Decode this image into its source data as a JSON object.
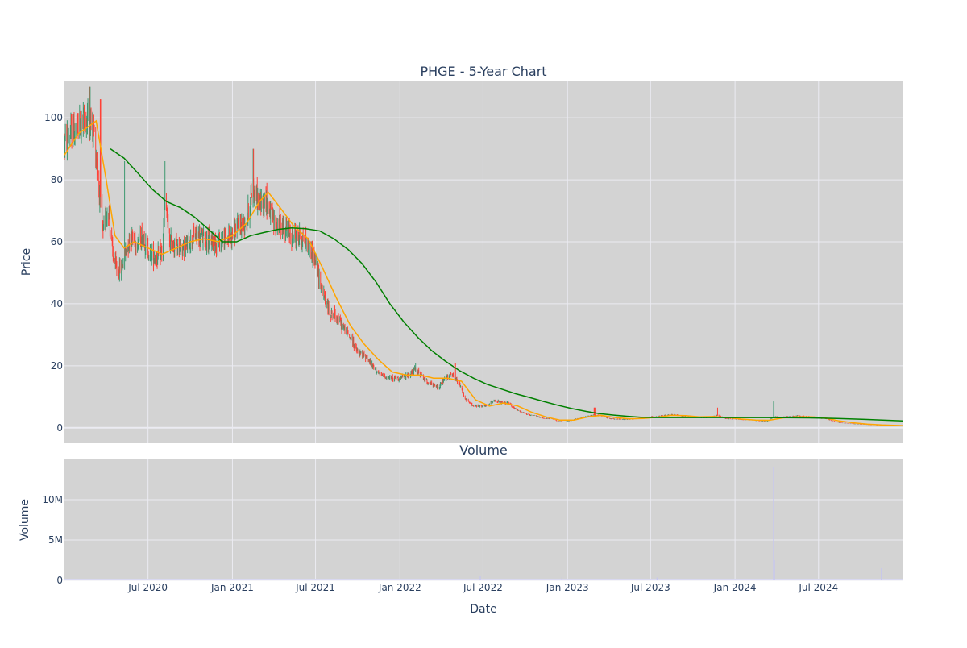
{
  "colors": {
    "plot_bg": "#d3d3d3",
    "grid": "#ebebf2",
    "increasing": "#3d9970",
    "decreasing": "#ff4136",
    "ma_short": "orange",
    "ma_long": "green",
    "volume": "#c6c6ef",
    "text": "#2a3f5f"
  },
  "chart_data": [
    {
      "type": "candlestick",
      "title": "PHGE - 5-Year Chart",
      "ylabel": "Price",
      "xlim": [
        "2020-01-01",
        "2024-12-31"
      ],
      "ylim": [
        -5,
        112
      ],
      "yticks": [
        0,
        20,
        40,
        60,
        80,
        100
      ],
      "grid": true,
      "price_path": [
        [
          "2020-01-02",
          92
        ],
        [
          "2020-01-15",
          95
        ],
        [
          "2020-02-01",
          97
        ],
        [
          "2020-02-20",
          100
        ],
        [
          "2020-03-05",
          96
        ],
        [
          "2020-03-15",
          80
        ],
        [
          "2020-03-25",
          62
        ],
        [
          "2020-04-05",
          72
        ],
        [
          "2020-04-15",
          56
        ],
        [
          "2020-04-25",
          50
        ],
        [
          "2020-05-05",
          52
        ],
        [
          "2020-05-15",
          58
        ],
        [
          "2020-05-25",
          62
        ],
        [
          "2020-06-05",
          60
        ],
        [
          "2020-06-20",
          62
        ],
        [
          "2020-07-05",
          56
        ],
        [
          "2020-07-20",
          55
        ],
        [
          "2020-08-01",
          57
        ],
        [
          "2020-08-08",
          75
        ],
        [
          "2020-08-15",
          60
        ],
        [
          "2020-09-01",
          59
        ],
        [
          "2020-09-20",
          58
        ],
        [
          "2020-10-10",
          62
        ],
        [
          "2020-11-01",
          61
        ],
        [
          "2020-12-01",
          60
        ],
        [
          "2020-12-20",
          61
        ],
        [
          "2021-01-10",
          64
        ],
        [
          "2021-02-01",
          67
        ],
        [
          "2021-02-15",
          78
        ],
        [
          "2021-03-01",
          72
        ],
        [
          "2021-03-15",
          74
        ],
        [
          "2021-04-01",
          66
        ],
        [
          "2021-04-20",
          65
        ],
        [
          "2021-05-10",
          62
        ],
        [
          "2021-05-25",
          62
        ],
        [
          "2021-06-10",
          60
        ],
        [
          "2021-06-25",
          56
        ],
        [
          "2021-07-10",
          48
        ],
        [
          "2021-07-20",
          42
        ],
        [
          "2021-08-01",
          37
        ],
        [
          "2021-08-15",
          36
        ],
        [
          "2021-09-01",
          32
        ],
        [
          "2021-09-20",
          28
        ],
        [
          "2021-10-01",
          24
        ],
        [
          "2021-10-20",
          23
        ],
        [
          "2021-11-01",
          20
        ],
        [
          "2021-11-20",
          17
        ],
        [
          "2021-12-10",
          16
        ],
        [
          "2022-01-01",
          16
        ],
        [
          "2022-01-20",
          17
        ],
        [
          "2022-02-05",
          19
        ],
        [
          "2022-02-20",
          16
        ],
        [
          "2022-03-10",
          14
        ],
        [
          "2022-03-25",
          13
        ],
        [
          "2022-04-10",
          16
        ],
        [
          "2022-04-25",
          17
        ],
        [
          "2022-05-10",
          14
        ],
        [
          "2022-05-25",
          9
        ],
        [
          "2022-06-10",
          7
        ],
        [
          "2022-06-25",
          7
        ],
        [
          "2022-07-10",
          7
        ],
        [
          "2022-07-25",
          9
        ],
        [
          "2022-08-10",
          8
        ],
        [
          "2022-08-25",
          8
        ],
        [
          "2022-09-10",
          6
        ],
        [
          "2022-09-25",
          5
        ],
        [
          "2022-10-10",
          4
        ],
        [
          "2022-10-25",
          3.8
        ],
        [
          "2022-11-10",
          3
        ],
        [
          "2022-11-25",
          3
        ],
        [
          "2022-12-10",
          2.2
        ],
        [
          "2022-12-25",
          1.8
        ],
        [
          "2023-01-10",
          2.5
        ],
        [
          "2023-01-25",
          3
        ],
        [
          "2023-02-10",
          3.5
        ],
        [
          "2023-02-25",
          4
        ],
        [
          "2023-03-15",
          4
        ],
        [
          "2023-04-01",
          3
        ],
        [
          "2023-04-20",
          2.8
        ],
        [
          "2023-05-10",
          2.7
        ],
        [
          "2023-06-01",
          3
        ],
        [
          "2023-06-20",
          3.4
        ],
        [
          "2023-07-10",
          3.5
        ],
        [
          "2023-08-01",
          4
        ],
        [
          "2023-08-20",
          4.2
        ],
        [
          "2023-09-10",
          3.8
        ],
        [
          "2023-10-01",
          3.6
        ],
        [
          "2023-10-20",
          3.3
        ],
        [
          "2023-11-10",
          3.4
        ],
        [
          "2023-11-25",
          4
        ],
        [
          "2023-12-10",
          3
        ],
        [
          "2024-01-01",
          2.8
        ],
        [
          "2024-01-20",
          2.6
        ],
        [
          "2024-02-10",
          2.5
        ],
        [
          "2024-02-25",
          2.2
        ],
        [
          "2024-03-10",
          2.1
        ],
        [
          "2024-03-25",
          3.5
        ],
        [
          "2024-04-10",
          3.4
        ],
        [
          "2024-05-01",
          3.6
        ],
        [
          "2024-05-20",
          3.8
        ],
        [
          "2024-06-10",
          3.5
        ],
        [
          "2024-07-01",
          3.3
        ],
        [
          "2024-07-20",
          2.8
        ],
        [
          "2024-08-10",
          1.8
        ],
        [
          "2024-09-01",
          1.4
        ],
        [
          "2024-10-01",
          1.1
        ],
        [
          "2024-11-01",
          0.9
        ],
        [
          "2024-12-01",
          0.7
        ],
        [
          "2024-12-30",
          0.6
        ]
      ],
      "spikes": [
        [
          "2020-02-25",
          110
        ],
        [
          "2020-03-20",
          106
        ],
        [
          "2020-05-10",
          86
        ],
        [
          "2020-08-08",
          86
        ],
        [
          "2021-02-15",
          90
        ],
        [
          "2022-02-05",
          21
        ],
        [
          "2022-05-01",
          21
        ],
        [
          "2023-03-01",
          6.5
        ],
        [
          "2023-11-25",
          6.5
        ],
        [
          "2024-03-25",
          8.5
        ]
      ],
      "series": [
        {
          "kind": "moving-average-short",
          "color": "orange",
          "points": [
            [
              "2020-01-01",
              88
            ],
            [
              "2020-02-01",
              95
            ],
            [
              "2020-03-01",
              98
            ],
            [
              "2020-03-10",
              99
            ],
            [
              "2020-04-01",
              80
            ],
            [
              "2020-04-20",
              62
            ],
            [
              "2020-05-10",
              58
            ],
            [
              "2020-06-01",
              60
            ],
            [
              "2020-07-01",
              58
            ],
            [
              "2020-08-01",
              56
            ],
            [
              "2020-09-01",
              58
            ],
            [
              "2020-10-01",
              60
            ],
            [
              "2020-11-01",
              61
            ],
            [
              "2020-12-01",
              60
            ],
            [
              "2021-01-01",
              62
            ],
            [
              "2021-02-01",
              66
            ],
            [
              "2021-03-01",
              73
            ],
            [
              "2021-03-20",
              76
            ],
            [
              "2021-04-15",
              71
            ],
            [
              "2021-05-15",
              65
            ],
            [
              "2021-06-15",
              61
            ],
            [
              "2021-07-15",
              52
            ],
            [
              "2021-08-15",
              42
            ],
            [
              "2021-09-15",
              33
            ],
            [
              "2021-10-15",
              27
            ],
            [
              "2021-11-15",
              22
            ],
            [
              "2021-12-15",
              18
            ],
            [
              "2022-01-15",
              17
            ],
            [
              "2022-02-15",
              17
            ],
            [
              "2022-03-15",
              16
            ],
            [
              "2022-04-15",
              16
            ],
            [
              "2022-05-15",
              15
            ],
            [
              "2022-06-15",
              9
            ],
            [
              "2022-07-15",
              7
            ],
            [
              "2022-08-15",
              8
            ],
            [
              "2022-09-15",
              7
            ],
            [
              "2022-10-15",
              5
            ],
            [
              "2022-11-15",
              3.5
            ],
            [
              "2022-12-15",
              2.5
            ],
            [
              "2023-01-15",
              2.5
            ],
            [
              "2023-02-15",
              3.5
            ],
            [
              "2023-03-15",
              4
            ],
            [
              "2023-04-15",
              3.3
            ],
            [
              "2023-05-15",
              2.9
            ],
            [
              "2023-06-15",
              3
            ],
            [
              "2023-07-15",
              3.4
            ],
            [
              "2023-08-15",
              4
            ],
            [
              "2023-09-15",
              3.9
            ],
            [
              "2023-10-15",
              3.5
            ],
            [
              "2023-11-15",
              3.6
            ],
            [
              "2023-12-15",
              3.3
            ],
            [
              "2024-01-15",
              2.8
            ],
            [
              "2024-02-15",
              2.5
            ],
            [
              "2024-03-15",
              2.4
            ],
            [
              "2024-04-15",
              3.2
            ],
            [
              "2024-05-15",
              3.5
            ],
            [
              "2024-06-15",
              3.5
            ],
            [
              "2024-07-15",
              3.2
            ],
            [
              "2024-08-15",
              2.2
            ],
            [
              "2024-09-15",
              1.6
            ],
            [
              "2024-10-15",
              1.2
            ],
            [
              "2024-11-15",
              0.9
            ],
            [
              "2024-12-31",
              0.7
            ]
          ]
        },
        {
          "kind": "moving-average-long",
          "color": "green",
          "points": [
            [
              "2020-04-10",
              90
            ],
            [
              "2020-05-10",
              87
            ],
            [
              "2020-06-10",
              82
            ],
            [
              "2020-07-10",
              77
            ],
            [
              "2020-08-10",
              73
            ],
            [
              "2020-09-10",
              71
            ],
            [
              "2020-10-10",
              68
            ],
            [
              "2020-11-10",
              64
            ],
            [
              "2020-12-10",
              60
            ],
            [
              "2021-01-10",
              60
            ],
            [
              "2021-02-10",
              62
            ],
            [
              "2021-03-10",
              63
            ],
            [
              "2021-04-10",
              64
            ],
            [
              "2021-05-10",
              64.5
            ],
            [
              "2021-06-10",
              64.2
            ],
            [
              "2021-07-10",
              63.5
            ],
            [
              "2021-08-10",
              61
            ],
            [
              "2021-09-10",
              57.5
            ],
            [
              "2021-10-10",
              53
            ],
            [
              "2021-11-10",
              47
            ],
            [
              "2021-12-10",
              40
            ],
            [
              "2022-01-10",
              34
            ],
            [
              "2022-02-10",
              29
            ],
            [
              "2022-03-10",
              25
            ],
            [
              "2022-04-10",
              21.5
            ],
            [
              "2022-05-10",
              18.5
            ],
            [
              "2022-06-10",
              16
            ],
            [
              "2022-07-10",
              14
            ],
            [
              "2022-08-10",
              12.5
            ],
            [
              "2022-09-10",
              11
            ],
            [
              "2022-10-10",
              9.8
            ],
            [
              "2022-11-10",
              8.5
            ],
            [
              "2022-12-10",
              7.3
            ],
            [
              "2023-01-10",
              6.2
            ],
            [
              "2023-02-10",
              5.3
            ],
            [
              "2023-03-10",
              4.6
            ],
            [
              "2023-04-10",
              4.1
            ],
            [
              "2023-05-10",
              3.7
            ],
            [
              "2023-06-10",
              3.4
            ],
            [
              "2023-07-10",
              3.3
            ],
            [
              "2023-09-10",
              3.3
            ],
            [
              "2023-12-10",
              3.3
            ],
            [
              "2024-03-10",
              3.3
            ],
            [
              "2024-06-10",
              3.2
            ],
            [
              "2024-08-10",
              3.0
            ],
            [
              "2024-10-10",
              2.7
            ],
            [
              "2024-12-31",
              2.2
            ]
          ]
        }
      ]
    },
    {
      "type": "bar",
      "title": "Volume",
      "ylabel": "Volume",
      "xlabel": "Date",
      "ylim": [
        0,
        15000000
      ],
      "yticks": [
        0,
        5000000,
        10000000
      ],
      "ytick_labels": [
        "0",
        "5M",
        "10M"
      ],
      "xticks": [
        "2020-07-01",
        "2021-01-01",
        "2021-07-01",
        "2022-01-01",
        "2022-07-01",
        "2023-01-01",
        "2023-07-01",
        "2024-01-01",
        "2024-07-01"
      ],
      "xtick_labels": [
        "Jul 2020",
        "Jan 2021",
        "Jul 2021",
        "Jan 2022",
        "Jul 2022",
        "Jan 2023",
        "Jul 2023",
        "Jan 2024",
        "Jul 2024"
      ],
      "baseline": 100000,
      "spikes": [
        [
          "2024-03-25",
          14000000
        ],
        [
          "2024-03-27",
          2500000
        ],
        [
          "2024-11-15",
          1500000
        ],
        [
          "2022-06-25",
          500000
        ],
        [
          "2022-12-20",
          400000
        ],
        [
          "2023-07-15",
          350000
        ]
      ]
    }
  ]
}
